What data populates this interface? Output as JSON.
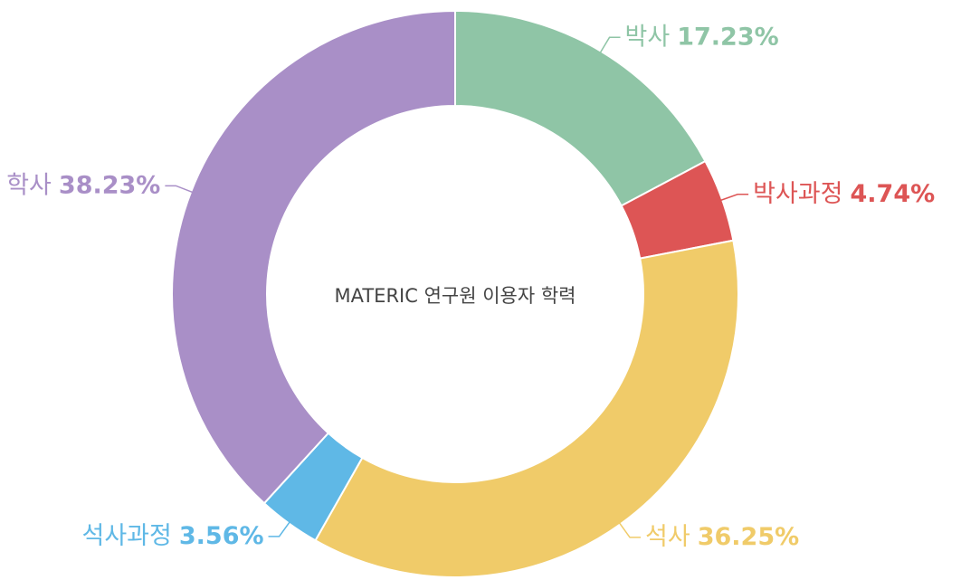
{
  "chart_data": {
    "type": "donut",
    "title": "MATERIC 연구원 이용자 학력",
    "categories": [
      "박사",
      "박사과정",
      "석사",
      "석사과정",
      "학사"
    ],
    "values": [
      17.23,
      4.74,
      36.25,
      3.56,
      38.23
    ],
    "value_labels": [
      "17.23%",
      "4.74%",
      "36.25%",
      "3.56%",
      "38.23%"
    ],
    "colors": [
      "#8fc5a6",
      "#dd5555",
      "#f0cb69",
      "#5fb8e6",
      "#a98fc7"
    ]
  }
}
